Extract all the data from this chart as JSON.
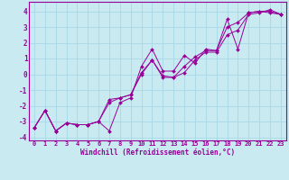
{
  "xlabel": "Windchill (Refroidissement éolien,°C)",
  "bg_color": "#c8eaf0",
  "line_color": "#990099",
  "grid_color": "#a8d8e8",
  "xlim": [
    -0.5,
    23.5
  ],
  "ylim": [
    -4.2,
    4.6
  ],
  "xticks": [
    0,
    1,
    2,
    3,
    4,
    5,
    6,
    7,
    8,
    9,
    10,
    11,
    12,
    13,
    14,
    15,
    16,
    17,
    18,
    19,
    20,
    21,
    22,
    23
  ],
  "yticks": [
    -4,
    -3,
    -2,
    -1,
    0,
    1,
    2,
    3,
    4
  ],
  "x": [
    0,
    1,
    2,
    3,
    4,
    5,
    6,
    7,
    8,
    9,
    10,
    11,
    12,
    13,
    14,
    15,
    16,
    17,
    18,
    19,
    20,
    21,
    22,
    23
  ],
  "series": [
    [
      -3.4,
      -2.3,
      -3.6,
      -3.1,
      -3.2,
      -3.2,
      -3.0,
      -3.6,
      -1.8,
      -1.5,
      0.5,
      1.6,
      0.2,
      0.2,
      1.2,
      0.7,
      1.6,
      1.5,
      3.5,
      1.6,
      3.9,
      4.0,
      3.9,
      3.8
    ],
    [
      -3.4,
      -2.3,
      -3.6,
      -3.1,
      -3.2,
      -3.2,
      -3.0,
      -1.6,
      -1.5,
      -1.3,
      0.1,
      0.9,
      -0.2,
      -0.2,
      0.1,
      0.9,
      1.4,
      1.4,
      2.5,
      2.8,
      3.8,
      3.9,
      4.1,
      3.8
    ],
    [
      -3.4,
      -2.3,
      -3.6,
      -3.1,
      -3.2,
      -3.2,
      -3.0,
      -1.8,
      -1.5,
      -1.3,
      0.0,
      0.9,
      -0.1,
      -0.2,
      0.5,
      1.1,
      1.5,
      1.5,
      3.0,
      3.3,
      3.9,
      4.0,
      4.0,
      3.8
    ]
  ],
  "marker": "D",
  "markersize": 2.0,
  "linewidth": 0.7,
  "tick_fontsize": 5.0,
  "label_fontsize": 5.5
}
